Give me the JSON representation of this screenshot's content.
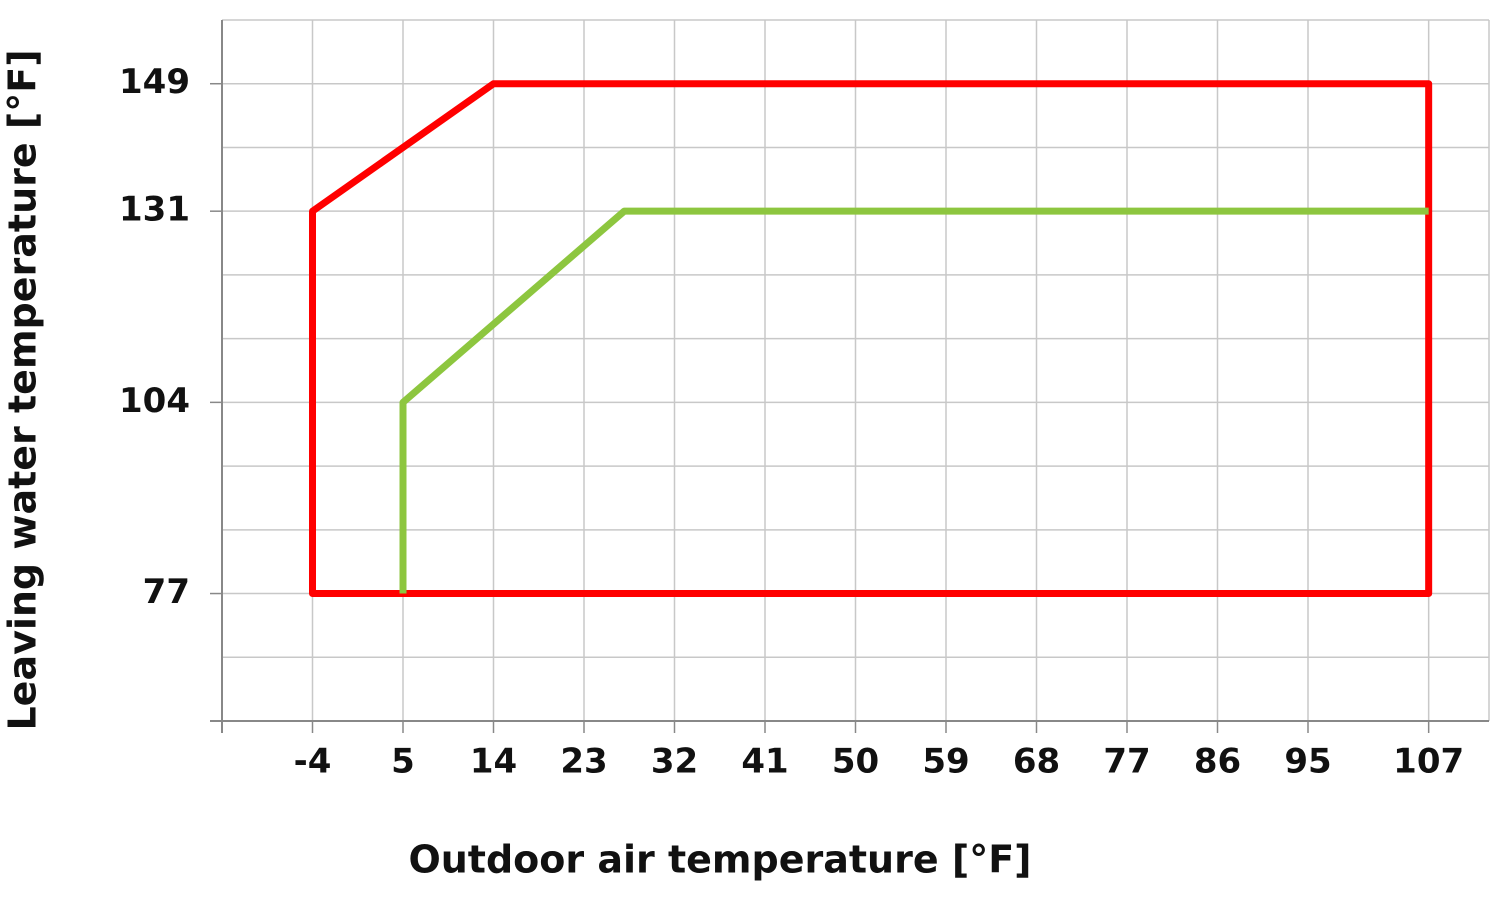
{
  "chart_data": {
    "type": "line",
    "x_label": "Outdoor air temperature [°F]",
    "y_label": "Leaving water temperature [°F]",
    "xlim": [
      -13,
      113
    ],
    "ylim": [
      59,
      158
    ],
    "xticks": [
      -4,
      5,
      14,
      23,
      32,
      41,
      50,
      59,
      68,
      77,
      86,
      95,
      107
    ],
    "yticks": [
      77,
      104,
      131,
      149
    ],
    "grid": true,
    "series": [
      {
        "color": "#ff0000",
        "closed": true,
        "x": [
          -4,
          -4,
          14,
          107,
          107
        ],
        "values": [
          77,
          131,
          149,
          149,
          77
        ]
      },
      {
        "color": "#8dc63f",
        "closed": false,
        "x": [
          5,
          5,
          27,
          107
        ],
        "values": [
          77,
          104,
          131,
          131
        ]
      }
    ]
  }
}
